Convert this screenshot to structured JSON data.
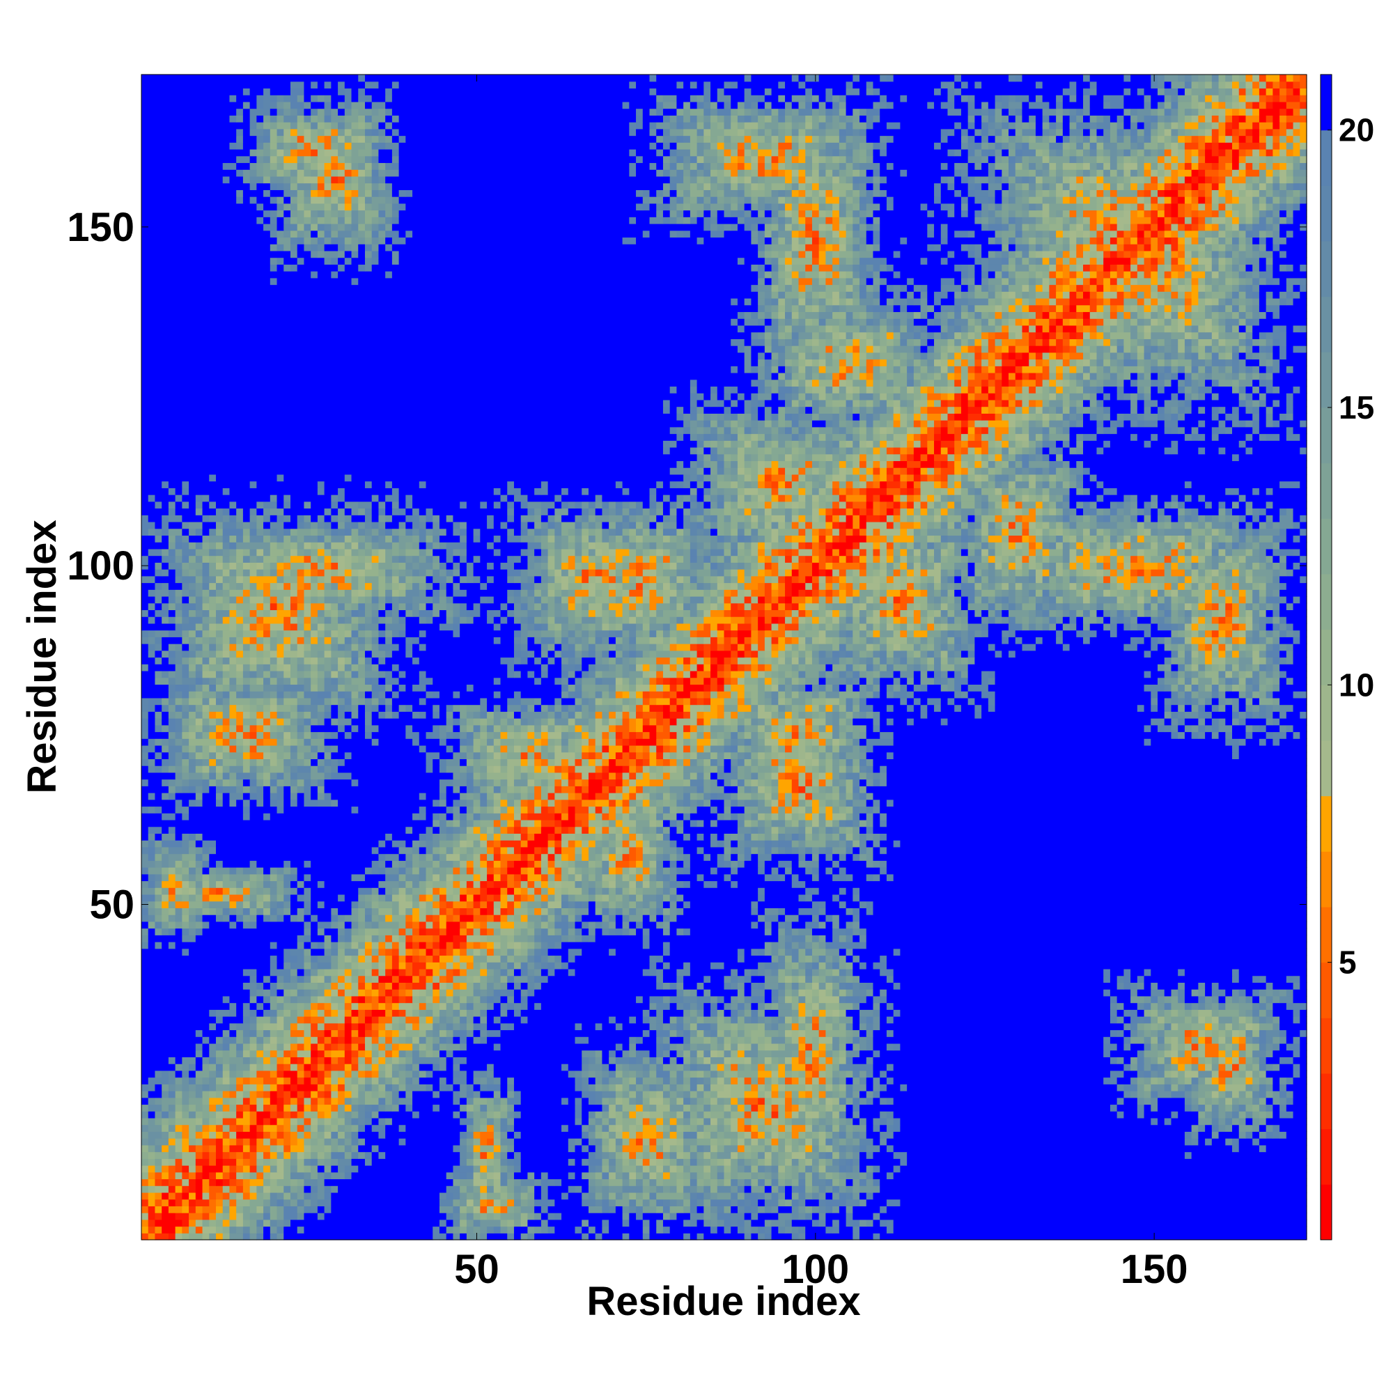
{
  "chart_data": {
    "type": "heatmap",
    "title": "",
    "xlabel": "Residue index",
    "ylabel": "Residue index",
    "n_residues": 172,
    "xlim": [
      1,
      172
    ],
    "ylim": [
      1,
      172
    ],
    "x_ticks": [
      50,
      100,
      150
    ],
    "y_ticks": [
      50,
      100,
      150
    ],
    "colorbar": {
      "ticks": [
        5,
        10,
        15,
        20
      ],
      "range": [
        0,
        21
      ],
      "bands": [
        {
          "max": 1,
          "color": "#ff0000"
        },
        {
          "max": 2,
          "color": "#ff1a00"
        },
        {
          "max": 3,
          "color": "#ff2e00"
        },
        {
          "max": 4,
          "color": "#ff4500"
        },
        {
          "max": 5,
          "color": "#ff5a00"
        },
        {
          "max": 6,
          "color": "#ff7000"
        },
        {
          "max": 7,
          "color": "#ff8a00"
        },
        {
          "max": 8,
          "color": "#ffa500"
        },
        {
          "max": 9,
          "color": "#a5b98c"
        },
        {
          "max": 10,
          "color": "#9eb68c"
        },
        {
          "max": 11,
          "color": "#95b28d"
        },
        {
          "max": 12,
          "color": "#8dad90"
        },
        {
          "max": 13,
          "color": "#85a893"
        },
        {
          "max": 14,
          "color": "#7ea296"
        },
        {
          "max": 15,
          "color": "#789d9a"
        },
        {
          "max": 16,
          "color": "#71979f"
        },
        {
          "max": 17,
          "color": "#6a91a3"
        },
        {
          "max": 18,
          "color": "#638ba8"
        },
        {
          "max": 19,
          "color": "#5d86ad"
        },
        {
          "max": 20,
          "color": "#5a83b1"
        },
        {
          "max": 21,
          "color": "#0000ff"
        }
      ]
    },
    "contact_blocks": [
      {
        "x": [
          1,
          172
        ],
        "y": [
          1,
          172
        ],
        "note": "diagonal"
      },
      {
        "x": [
          15,
          38
        ],
        "y": [
          155,
          168
        ]
      },
      {
        "x": [
          75,
          110
        ],
        "y": [
          150,
          170
        ]
      },
      {
        "x": [
          120,
          170
        ],
        "y": [
          130,
          170
        ]
      },
      {
        "x": [
          5,
          50
        ],
        "y": [
          92,
          107
        ]
      },
      {
        "x": [
          55,
          80
        ],
        "y": [
          85,
          110
        ]
      },
      {
        "x": [
          90,
          120
        ],
        "y": [
          120,
          140
        ]
      },
      {
        "x": [
          125,
          170
        ],
        "y": [
          90,
          110
        ]
      },
      {
        "x": [
          45,
          70
        ],
        "y": [
          65,
          80
        ]
      },
      {
        "x": [
          65,
          80
        ],
        "y": [
          50,
          65
        ]
      },
      {
        "x": [
          1,
          25
        ],
        "y": [
          48,
          55
        ]
      },
      {
        "x": [
          75,
          110
        ],
        "y": [
          1,
          40
        ]
      },
      {
        "x": [
          45,
          60
        ],
        "y": [
          1,
          10
        ]
      },
      {
        "x": [
          145,
          170
        ],
        "y": [
          20,
          38
        ]
      },
      {
        "x": [
          100,
          125
        ],
        "y": [
          80,
          110
        ]
      },
      {
        "x": [
          85,
          110
        ],
        "y": [
          65,
          85
        ]
      },
      {
        "x": [
          1,
          30
        ],
        "y": [
          65,
          85
        ]
      }
    ]
  }
}
